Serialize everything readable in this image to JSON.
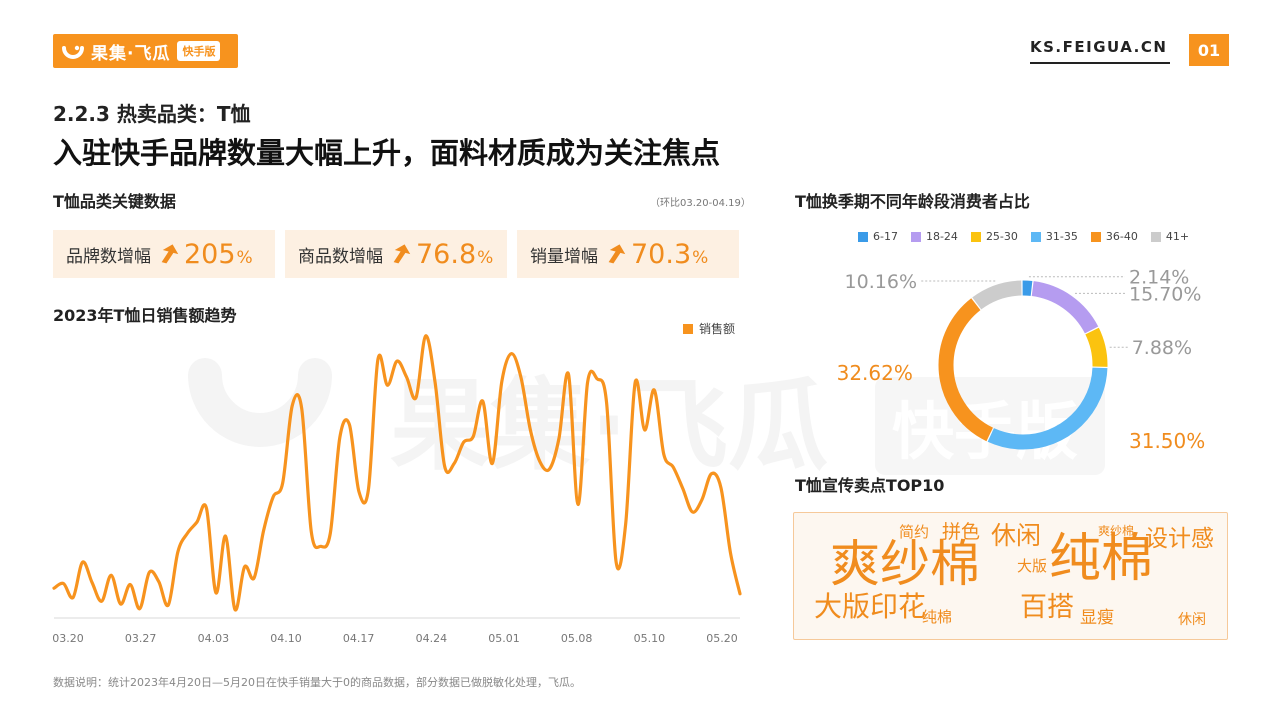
{
  "header": {
    "logo_text": "果集·飞瓜",
    "logo_badge": "快手版",
    "site": "KS.FEIGUA.CN",
    "page_number": "01",
    "subtitle": "2.2.3 热卖品类：T恤",
    "title": "入驻快手品牌数量大幅上升，面料材质成为关注焦点"
  },
  "key_data": {
    "heading": "T恤品类关键数据",
    "period_note": "（环比03.20-04.19）",
    "kpis": [
      {
        "label": "品牌数增幅",
        "value": "205",
        "unit": "%"
      },
      {
        "label": "商品数增幅",
        "value": "76.8",
        "unit": "%"
      },
      {
        "label": "销量增幅",
        "value": "70.3",
        "unit": "%"
      }
    ]
  },
  "watermark": {
    "text": "果集·飞瓜",
    "badge": "快手版"
  },
  "colors": {
    "accent": "#f7931e",
    "kpi_bg": "#fdf0e2",
    "line": "#f7931e"
  },
  "chart_data": [
    {
      "type": "line",
      "title": "2023年T恤日销售额趋势",
      "xlabel": "",
      "ylabel": "",
      "x_ticks": [
        "03.20",
        "03.27",
        "04.03",
        "04.10",
        "04.17",
        "04.24",
        "05.01",
        "05.08",
        "05.10",
        "05.20"
      ],
      "series": [
        {
          "name": "销售额",
          "color": "#f7931e",
          "values": [
            32,
            37,
            22,
            60,
            38,
            18,
            46,
            15,
            36,
            10,
            49,
            39,
            14,
            71,
            91,
            103,
            118,
            27,
            88,
            9,
            55,
            43,
            94,
            130,
            145,
            228,
            225,
            93,
            77,
            91,
            194,
            208,
            136,
            138,
            278,
            250,
            276,
            259,
            237,
            303,
            253,
            163,
            166,
            189,
            195,
            233,
            166,
            254,
            284,
            259,
            202,
            168,
            160,
            193,
            262,
            122,
            253,
            257,
            231,
            60,
            101,
            253,
            202,
            245,
            176,
            162,
            139,
            114,
            127,
            155,
            140,
            70,
            26
          ]
        }
      ],
      "legend": "top-right",
      "grid": false
    },
    {
      "type": "pie",
      "title": "T恤换季期不同年龄段消费者占比",
      "labels": [
        "6-17",
        "18-24",
        "25-30",
        "31-35",
        "36-40",
        "41+"
      ],
      "values": [
        2.14,
        15.7,
        7.88,
        31.5,
        32.62,
        10.16
      ],
      "value_labels": [
        "2.14%",
        "15.70%",
        "7.88%",
        "31.50%",
        "32.62%",
        "10.16%"
      ],
      "colors": [
        "#3a9be8",
        "#b59cf0",
        "#fbc30f",
        "#5db8f5",
        "#f7931e",
        "#cccccc"
      ],
      "legend": "top"
    }
  ],
  "wordcloud": {
    "heading": "T恤宣传卖点TOP10",
    "words": [
      "简约",
      "拼色",
      "休闲",
      "爽纱棉",
      "设计感",
      "爽纱棉",
      "纯棉",
      "大版",
      "大版印花",
      "纯棉",
      "百搭",
      "显瘦",
      "休闲"
    ]
  },
  "footnote": "数据说明：统计2023年4月20日—5月20日在快手销量大于0的商品数据，部分数据已做脱敏化处理，飞瓜。"
}
